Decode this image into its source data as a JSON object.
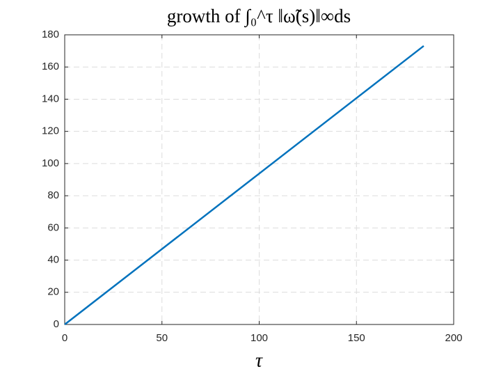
{
  "chart_data": {
    "type": "line",
    "title": "growth of ∫₀^τ ‖ω̃(s)‖∞ds",
    "xlabel": "τ",
    "x": [
      0,
      184.6
    ],
    "series": [
      {
        "color": "#0072bd",
        "values": [
          0,
          173.1
        ]
      }
    ],
    "xlim": [
      0,
      200
    ],
    "xticks": [
      0,
      50,
      100,
      150,
      200
    ],
    "ylim": [
      0,
      180
    ],
    "yticks": [
      0,
      20,
      40,
      60,
      80,
      100,
      120,
      140,
      160,
      180
    ],
    "grid": true
  }
}
